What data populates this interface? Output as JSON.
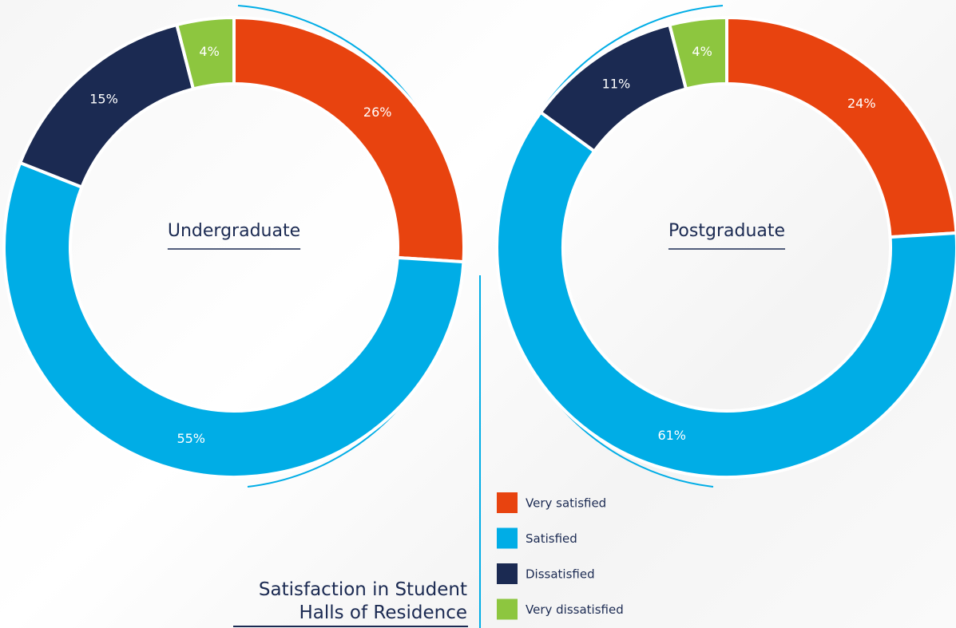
{
  "title": "Satisfaction in Student Halls of Residence",
  "chart_data": [
    {
      "type": "pie",
      "label": "Undergraduate",
      "categories": [
        "Very satisfied",
        "Satisfied",
        "Dissatisfied",
        "Very dissatisfied"
      ],
      "values": [
        26,
        55,
        15,
        4
      ],
      "value_labels": [
        "26%",
        "55%",
        "15%",
        "4%"
      ],
      "colors": [
        "#e8430f",
        "#00ade6",
        "#1b2a52",
        "#8dc63f"
      ]
    },
    {
      "type": "pie",
      "label": "Postgraduate",
      "categories": [
        "Very satisfied",
        "Satisfied",
        "Dissatisfied",
        "Very dissatisfied"
      ],
      "values": [
        24,
        61,
        11,
        4
      ],
      "value_labels": [
        "24%",
        "61%",
        "11%",
        "4%"
      ],
      "colors": [
        "#e8430f",
        "#00ade6",
        "#1b2a52",
        "#8dc63f"
      ]
    }
  ]
}
